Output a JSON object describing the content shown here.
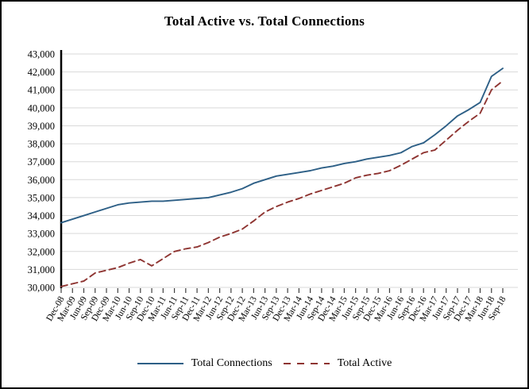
{
  "chart_data": {
    "type": "line",
    "title": "Total Active vs. Total Connections",
    "categories": [
      "Dec-08",
      "Mar-09",
      "Jun-09",
      "Sep-09",
      "Dec-09",
      "Mar-10",
      "Jun-10",
      "Sep-10",
      "Dec-10",
      "Mar-11",
      "Jun-11",
      "Sep-11",
      "Dec-11",
      "Mar-12",
      "Jun-12",
      "Sep-12",
      "Dec-12",
      "Mar-13",
      "Jun-13",
      "Sep-13",
      "Dec-13",
      "Mar-14",
      "Jun-14",
      "Sep-14",
      "Dec-14",
      "Mar-15",
      "Jun-15",
      "Sep-15",
      "Dec-15",
      "Mar-16",
      "Jun-16",
      "Sep-16",
      "Dec-16",
      "Mar-17",
      "Jun-17",
      "Sep-17",
      "Dec-17",
      "Mar-18",
      "Jun-18",
      "Sep-18"
    ],
    "series": [
      {
        "name": "Total Connections",
        "line_style": "solid",
        "color": "#2d5f86",
        "values": [
          33600,
          33800,
          34000,
          34200,
          34400,
          34600,
          34700,
          34750,
          34800,
          34800,
          34850,
          34900,
          34950,
          35000,
          35150,
          35300,
          35500,
          35800,
          36000,
          36200,
          36300,
          36400,
          36500,
          36650,
          36750,
          36900,
          37000,
          37150,
          37250,
          37350,
          37500,
          37850,
          38050,
          38500,
          39000,
          39550,
          39900,
          40300,
          41750,
          42200
        ]
      },
      {
        "name": "Total Active",
        "line_style": "dashed",
        "color": "#8e3431",
        "values": [
          30050,
          30200,
          30350,
          30800,
          30950,
          31100,
          31350,
          31550,
          31200,
          31600,
          32000,
          32150,
          32250,
          32500,
          32800,
          33000,
          33250,
          33700,
          34200,
          34500,
          34750,
          34950,
          35200,
          35400,
          35600,
          35800,
          36100,
          36250,
          36350,
          36500,
          36800,
          37150,
          37500,
          37650,
          38200,
          38750,
          39250,
          39700,
          41000,
          41500
        ]
      }
    ],
    "xlabel": "",
    "ylabel": "",
    "ylim": [
      30000,
      43000
    ],
    "ytick_step": 1000,
    "grid": true,
    "gridline_color": "#d9d9d9",
    "axis_color": "#000000",
    "tick_color": "#404040",
    "legend_position": "bottom"
  }
}
